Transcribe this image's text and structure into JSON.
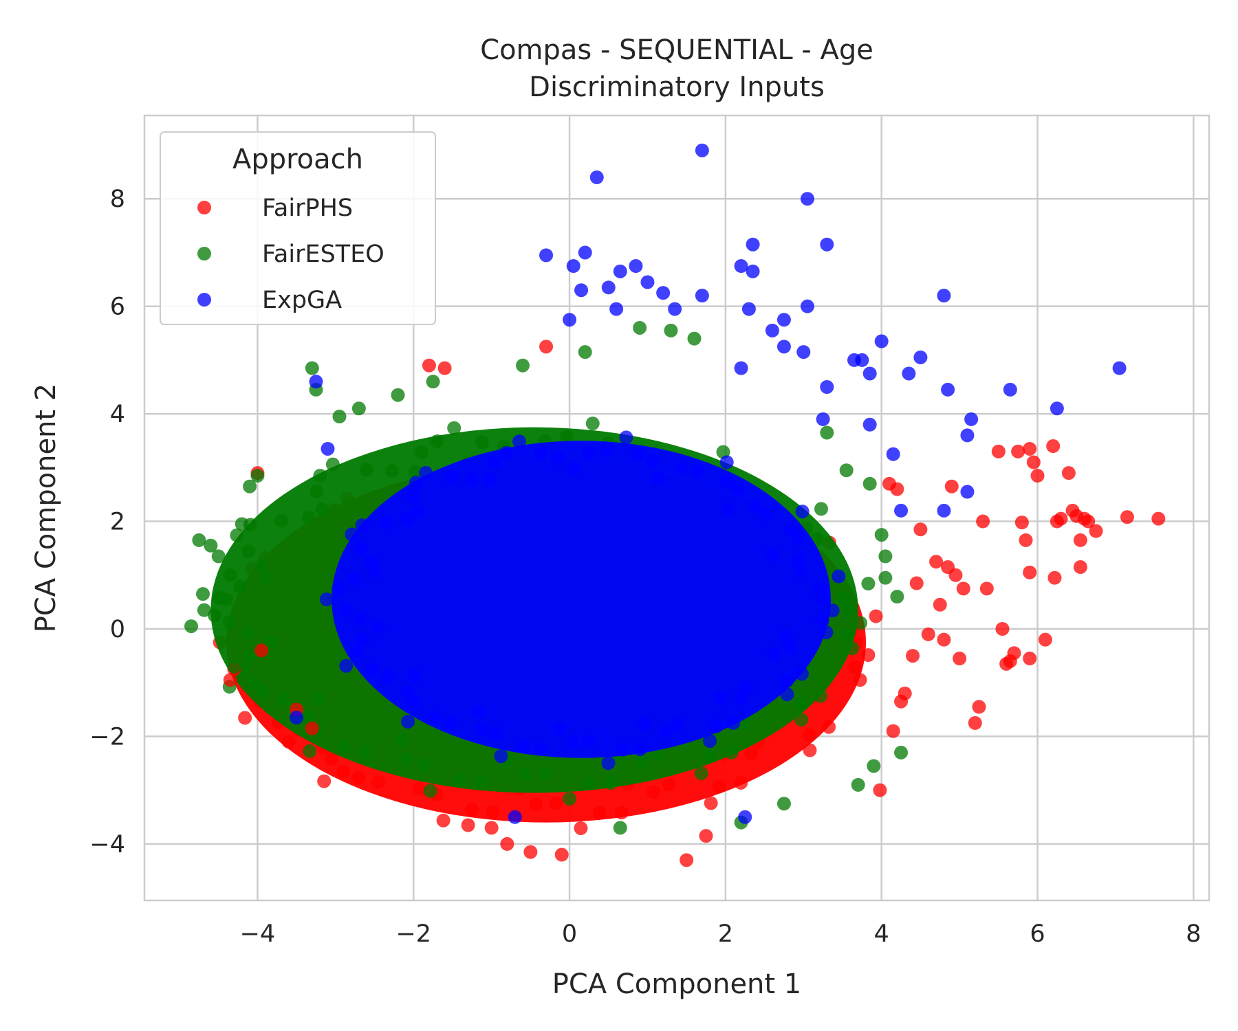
{
  "chart_data": {
    "type": "scatter",
    "title_line1": "Compas - SEQUENTIAL - Age",
    "title_line2": "Discriminatory Inputs",
    "xlabel": "PCA Component 1",
    "ylabel": "PCA Component 2",
    "xlim": [
      -5.45,
      8.2
    ],
    "ylim": [
      -5.05,
      9.55
    ],
    "x_ticks": [
      -4,
      -2,
      0,
      2,
      4,
      6,
      8
    ],
    "y_ticks": [
      -4,
      -2,
      0,
      2,
      4,
      6,
      8
    ],
    "x_tick_labels": [
      "−4",
      "−2",
      "0",
      "2",
      "4",
      "6",
      "8"
    ],
    "y_tick_labels": [
      "−4",
      "−2",
      "0",
      "2",
      "4",
      "6",
      "8"
    ],
    "grid": true,
    "legend": {
      "title": "Approach",
      "position": "top-left",
      "entries": [
        "FairPHS",
        "FairESTEO",
        "ExpGA"
      ]
    },
    "series": [
      {
        "name": "FairPHS",
        "color": "#ff0000",
        "cloud": {
          "cx": -0.3,
          "cy": -0.25,
          "rx": 4.1,
          "ry": 3.35
        },
        "points": [
          [
            7.55,
            2.05
          ],
          [
            7.15,
            2.08
          ],
          [
            6.75,
            1.82
          ],
          [
            6.65,
            2.0
          ],
          [
            6.6,
            2.05
          ],
          [
            6.55,
            1.65
          ],
          [
            6.55,
            1.15
          ],
          [
            6.5,
            2.1
          ],
          [
            6.45,
            2.2
          ],
          [
            6.4,
            2.9
          ],
          [
            6.3,
            2.05
          ],
          [
            6.25,
            2.0
          ],
          [
            6.2,
            3.4
          ],
          [
            6.22,
            0.95
          ],
          [
            6.1,
            -0.2
          ],
          [
            6.0,
            2.85
          ],
          [
            5.95,
            3.1
          ],
          [
            5.9,
            3.35
          ],
          [
            5.9,
            1.05
          ],
          [
            5.9,
            -0.55
          ],
          [
            5.85,
            1.65
          ],
          [
            5.8,
            1.98
          ],
          [
            5.75,
            3.3
          ],
          [
            5.7,
            -0.45
          ],
          [
            5.65,
            -0.6
          ],
          [
            5.6,
            -0.65
          ],
          [
            5.55,
            0.0
          ],
          [
            5.5,
            3.3
          ],
          [
            5.35,
            0.75
          ],
          [
            5.3,
            2.0
          ],
          [
            5.25,
            -1.45
          ],
          [
            5.2,
            -1.75
          ],
          [
            5.05,
            0.75
          ],
          [
            5.0,
            -0.55
          ],
          [
            4.95,
            1.0
          ],
          [
            4.9,
            2.65
          ],
          [
            4.85,
            1.15
          ],
          [
            4.8,
            -0.2
          ],
          [
            4.75,
            0.45
          ],
          [
            4.7,
            1.25
          ],
          [
            4.6,
            -0.1
          ],
          [
            4.5,
            1.85
          ],
          [
            4.45,
            0.85
          ],
          [
            4.4,
            -0.5
          ],
          [
            4.3,
            -1.2
          ],
          [
            4.25,
            -1.35
          ],
          [
            4.15,
            -1.9
          ],
          [
            4.2,
            2.6
          ],
          [
            4.1,
            2.7
          ],
          [
            3.98,
            -3.0
          ],
          [
            -4.0,
            2.9
          ],
          [
            -3.5,
            -1.5
          ],
          [
            -3.6,
            -2.1
          ],
          [
            -3.3,
            -1.85
          ],
          [
            -2.9,
            -2.65
          ],
          [
            -1.8,
            4.9
          ],
          [
            -1.6,
            4.85
          ],
          [
            -1.3,
            -3.65
          ],
          [
            -1.0,
            -3.7
          ],
          [
            -0.8,
            -4.0
          ],
          [
            -0.5,
            -4.15
          ],
          [
            -0.1,
            -4.2
          ],
          [
            1.5,
            -4.3
          ],
          [
            1.75,
            -3.85
          ],
          [
            -0.3,
            5.25
          ],
          [
            -3.95,
            -0.4
          ],
          [
            -4.35,
            -0.95
          ],
          [
            -4.3,
            -0.75
          ]
        ]
      },
      {
        "name": "FairESTEO",
        "color": "#007a00",
        "cloud": {
          "cx": -0.45,
          "cy": 0.35,
          "rx": 4.15,
          "ry": 3.4
        },
        "points": [
          [
            -4.85,
            0.05
          ],
          [
            -4.75,
            1.65
          ],
          [
            -4.7,
            0.65
          ],
          [
            -4.6,
            1.55
          ],
          [
            -4.55,
            0.25
          ],
          [
            -4.5,
            1.35
          ],
          [
            -4.4,
            0.55
          ],
          [
            -4.35,
            1.0
          ],
          [
            -4.2,
            1.95
          ],
          [
            -4.1,
            2.65
          ],
          [
            -4.05,
            -1.0
          ],
          [
            -4.0,
            2.85
          ],
          [
            -3.3,
            4.85
          ],
          [
            -3.25,
            4.45
          ],
          [
            -2.95,
            3.95
          ],
          [
            -2.7,
            4.1
          ],
          [
            -2.2,
            4.35
          ],
          [
            -1.75,
            4.6
          ],
          [
            -0.6,
            4.9
          ],
          [
            0.2,
            5.15
          ],
          [
            0.9,
            5.6
          ],
          [
            1.3,
            5.55
          ],
          [
            1.6,
            5.4
          ],
          [
            3.3,
            3.65
          ],
          [
            3.55,
            2.95
          ],
          [
            3.85,
            2.7
          ],
          [
            4.0,
            1.75
          ],
          [
            4.05,
            1.35
          ],
          [
            4.05,
            0.95
          ],
          [
            4.2,
            0.6
          ],
          [
            4.25,
            -2.3
          ],
          [
            3.9,
            -2.55
          ],
          [
            3.7,
            -2.9
          ],
          [
            0.65,
            -3.7
          ],
          [
            2.2,
            -3.6
          ],
          [
            2.75,
            -3.25
          ],
          [
            -4.3,
            -0.7
          ]
        ]
      },
      {
        "name": "ExpGA",
        "color": "#0000ff",
        "cloud": {
          "cx": 0.15,
          "cy": 0.55,
          "rx": 3.2,
          "ry": 2.95
        },
        "points": [
          [
            1.7,
            8.9
          ],
          [
            0.35,
            8.4
          ],
          [
            3.05,
            8.0
          ],
          [
            3.3,
            7.15
          ],
          [
            2.35,
            7.15
          ],
          [
            -0.3,
            6.95
          ],
          [
            0.2,
            7.0
          ],
          [
            0.05,
            6.75
          ],
          [
            0.65,
            6.65
          ],
          [
            0.85,
            6.75
          ],
          [
            1.0,
            6.45
          ],
          [
            2.2,
            6.75
          ],
          [
            2.35,
            6.65
          ],
          [
            0.5,
            6.35
          ],
          [
            1.2,
            6.25
          ],
          [
            1.7,
            6.2
          ],
          [
            3.05,
            6.0
          ],
          [
            4.8,
            6.2
          ],
          [
            0.15,
            6.3
          ],
          [
            0.6,
            5.95
          ],
          [
            1.35,
            5.95
          ],
          [
            2.3,
            5.95
          ],
          [
            2.75,
            5.75
          ],
          [
            0.0,
            5.75
          ],
          [
            2.6,
            5.55
          ],
          [
            3.0,
            5.15
          ],
          [
            2.75,
            5.25
          ],
          [
            4.0,
            5.35
          ],
          [
            4.5,
            5.05
          ],
          [
            3.65,
            5.0
          ],
          [
            3.75,
            5.0
          ],
          [
            4.35,
            4.75
          ],
          [
            3.85,
            4.75
          ],
          [
            2.2,
            4.85
          ],
          [
            4.85,
            4.45
          ],
          [
            5.65,
            4.45
          ],
          [
            7.05,
            4.85
          ],
          [
            3.3,
            4.5
          ],
          [
            3.25,
            3.9
          ],
          [
            5.15,
            3.9
          ],
          [
            5.1,
            3.6
          ],
          [
            6.25,
            4.1
          ],
          [
            3.85,
            3.8
          ],
          [
            4.15,
            3.25
          ],
          [
            4.25,
            2.2
          ],
          [
            4.8,
            2.2
          ],
          [
            5.1,
            2.55
          ],
          [
            -3.25,
            4.6
          ],
          [
            -3.1,
            3.35
          ],
          [
            -3.5,
            -1.65
          ],
          [
            2.25,
            -3.5
          ],
          [
            -0.7,
            -3.5
          ]
        ]
      }
    ]
  }
}
